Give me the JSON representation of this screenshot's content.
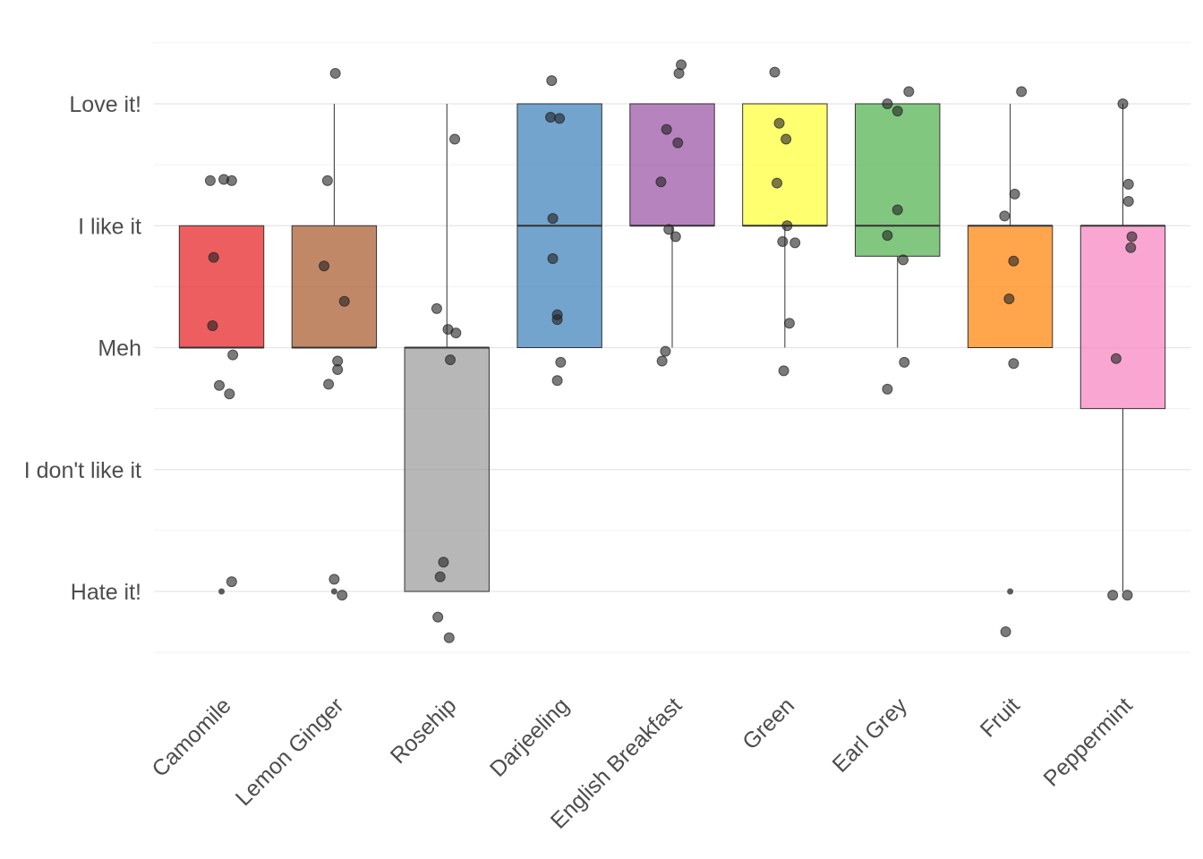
{
  "chart_data": {
    "type": "boxplot",
    "title": "",
    "xlabel": "",
    "ylabel": "",
    "categories": [
      "Camomile",
      "Lemon Ginger",
      "Rosehip",
      "Darjeeling",
      "English Breakfast",
      "Green",
      "Earl Grey",
      "Fruit",
      "Peppermint"
    ],
    "y_tick_labels": [
      {
        "value": 1,
        "label": "Hate it!"
      },
      {
        "value": 2,
        "label": "I don't like it"
      },
      {
        "value": 3,
        "label": "Meh"
      },
      {
        "value": 4,
        "label": "I like it"
      },
      {
        "value": 5,
        "label": "Love it!"
      }
    ],
    "ylim": [
      0.5,
      5.5
    ],
    "grid": true,
    "box_opacity": 0.7,
    "boxes": [
      {
        "color": "#E41A1C",
        "whisker_low": 3,
        "q1": 3,
        "median": 3,
        "q3": 4,
        "whisker_high": 4,
        "outliers": [
          1
        ]
      },
      {
        "color": "#A65628",
        "whisker_low": 3,
        "q1": 3,
        "median": 3,
        "q3": 4,
        "whisker_high": 5,
        "outliers": [
          1
        ]
      },
      {
        "color": "#999999",
        "whisker_low": 1,
        "q1": 1,
        "median": 3,
        "q3": 3,
        "whisker_high": 5,
        "outliers": []
      },
      {
        "color": "#377EB8",
        "whisker_low": 3,
        "q1": 3,
        "median": 4,
        "q3": 5,
        "whisker_high": 5,
        "outliers": []
      },
      {
        "color": "#984EA3",
        "whisker_low": 3,
        "q1": 4,
        "median": 4,
        "q3": 5,
        "whisker_high": 5,
        "outliers": []
      },
      {
        "color": "#FFFF33",
        "whisker_low": 3,
        "q1": 4,
        "median": 4,
        "q3": 5,
        "whisker_high": 5,
        "outliers": []
      },
      {
        "color": "#4DAF4A",
        "whisker_low": 3,
        "q1": 3.75,
        "median": 4,
        "q3": 5,
        "whisker_high": 5,
        "outliers": []
      },
      {
        "color": "#FF7F00",
        "whisker_low": 3,
        "q1": 3,
        "median": 4,
        "q3": 4,
        "whisker_high": 5,
        "outliers": [
          1
        ]
      },
      {
        "color": "#F781BF",
        "whisker_low": 1,
        "q1": 2.5,
        "median": 4,
        "q3": 4,
        "whisker_high": 5,
        "outliers": []
      }
    ],
    "jitter_points": [
      [
        [
          -0.1,
          4.37
        ],
        [
          0.02,
          4.38
        ],
        [
          0.09,
          4.37
        ],
        [
          -0.07,
          3.74
        ],
        [
          -0.08,
          3.18
        ],
        [
          0.1,
          2.94
        ],
        [
          -0.02,
          2.69
        ],
        [
          0.07,
          2.62
        ],
        [
          0.09,
          1.08
        ]
      ],
      [
        [
          0.01,
          5.25
        ],
        [
          -0.06,
          4.37
        ],
        [
          -0.09,
          3.67
        ],
        [
          0.09,
          3.38
        ],
        [
          0.03,
          2.89
        ],
        [
          0.03,
          2.82
        ],
        [
          -0.05,
          2.7
        ],
        [
          0.0,
          1.1
        ],
        [
          0.07,
          0.97
        ]
      ],
      [
        [
          0.07,
          4.71
        ],
        [
          -0.09,
          3.32
        ],
        [
          0.01,
          3.15
        ],
        [
          0.08,
          3.12
        ],
        [
          0.03,
          2.9
        ],
        [
          -0.03,
          1.24
        ],
        [
          -0.06,
          1.12
        ],
        [
          -0.08,
          0.79
        ],
        [
          0.02,
          0.62
        ]
      ],
      [
        [
          -0.07,
          5.19
        ],
        [
          -0.08,
          4.89
        ],
        [
          0.0,
          4.88
        ],
        [
          -0.06,
          4.06
        ],
        [
          -0.06,
          3.73
        ],
        [
          -0.02,
          3.27
        ],
        [
          -0.02,
          3.23
        ],
        [
          0.01,
          2.88
        ],
        [
          -0.02,
          2.73
        ]
      ],
      [
        [
          0.08,
          5.32
        ],
        [
          0.06,
          5.25
        ],
        [
          -0.05,
          4.79
        ],
        [
          0.05,
          4.68
        ],
        [
          -0.1,
          4.36
        ],
        [
          -0.03,
          3.97
        ],
        [
          0.03,
          3.91
        ],
        [
          -0.06,
          2.97
        ],
        [
          -0.09,
          2.89
        ]
      ],
      [
        [
          -0.09,
          5.26
        ],
        [
          -0.05,
          4.84
        ],
        [
          0.01,
          4.71
        ],
        [
          -0.07,
          4.35
        ],
        [
          0.02,
          4.0
        ],
        [
          -0.02,
          3.87
        ],
        [
          0.09,
          3.86
        ],
        [
          0.04,
          3.2
        ],
        [
          -0.01,
          2.81
        ]
      ],
      [
        [
          0.1,
          5.1
        ],
        [
          -0.09,
          5.0
        ],
        [
          0.0,
          4.94
        ],
        [
          0.0,
          4.13
        ],
        [
          -0.09,
          3.92
        ],
        [
          0.05,
          3.72
        ],
        [
          0.06,
          2.88
        ],
        [
          -0.09,
          2.66
        ]
      ],
      [
        [
          0.1,
          5.1
        ],
        [
          0.04,
          4.26
        ],
        [
          -0.05,
          4.08
        ],
        [
          0.03,
          3.71
        ],
        [
          -0.01,
          3.4
        ],
        [
          0.03,
          2.87
        ],
        [
          -0.04,
          0.67
        ]
      ],
      [
        [
          0.0,
          5.0
        ],
        [
          0.05,
          4.34
        ],
        [
          0.05,
          4.2
        ],
        [
          0.08,
          3.91
        ],
        [
          0.07,
          3.82
        ],
        [
          -0.06,
          2.91
        ],
        [
          -0.09,
          0.97
        ],
        [
          0.04,
          0.97
        ]
      ]
    ]
  }
}
